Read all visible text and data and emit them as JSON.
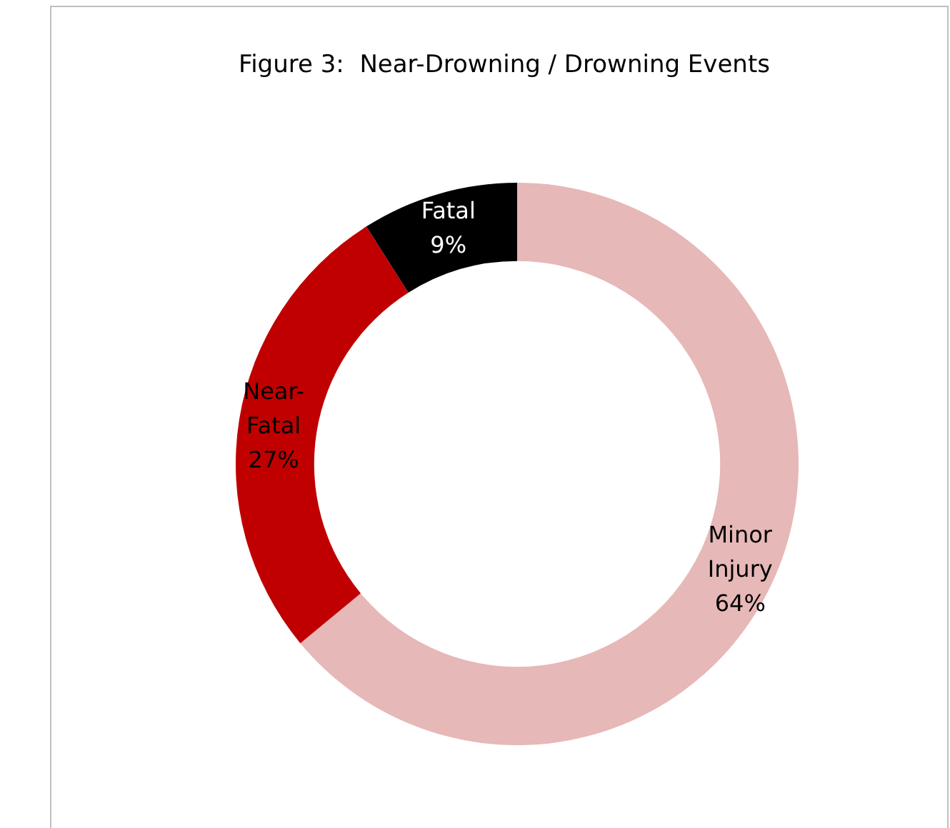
{
  "chart_data": {
    "type": "donut",
    "title": "Figure 3:  Near-Drowning / Drowning Events",
    "categories": [
      "Minor Injury",
      "Near-Fatal",
      "Fatal"
    ],
    "values": [
      64,
      27,
      9
    ],
    "colors": [
      "#e6b8b7",
      "#c00000",
      "#000000"
    ],
    "value_labels": [
      "64%",
      "27%",
      "9%"
    ],
    "legend": false
  }
}
